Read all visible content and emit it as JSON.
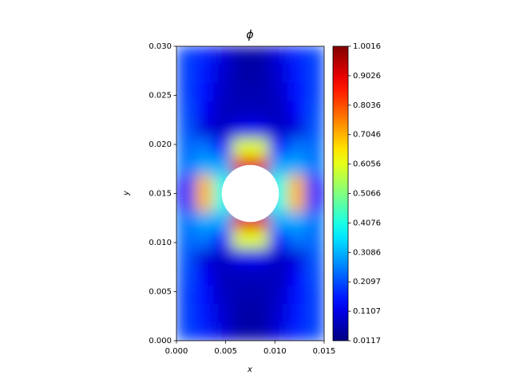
{
  "chart_data": {
    "type": "heatmap",
    "title": "ϕ",
    "xlabel": "x",
    "ylabel": "y",
    "xlim": [
      0,
      0.015
    ],
    "ylim": [
      0,
      0.03
    ],
    "xticks": [
      {
        "value": 0,
        "label": "0.000"
      },
      {
        "value": 0.005,
        "label": "0.005"
      },
      {
        "value": 0.01,
        "label": "0.010"
      },
      {
        "value": 0.015,
        "label": "0.015"
      }
    ],
    "yticks": [
      {
        "value": 0,
        "label": "0.000"
      },
      {
        "value": 0.005,
        "label": "0.005"
      },
      {
        "value": 0.01,
        "label": "0.010"
      },
      {
        "value": 0.015,
        "label": "0.015"
      },
      {
        "value": 0.02,
        "label": "0.020"
      },
      {
        "value": 0.025,
        "label": "0.025"
      },
      {
        "value": 0.03,
        "label": "0.030"
      }
    ],
    "colormap": "jet",
    "zlim": [
      0.0117,
      1.0016
    ],
    "cticks": [
      0.0117,
      0.1107,
      0.2097,
      0.3086,
      0.4076,
      0.5066,
      0.6056,
      0.7046,
      0.8036,
      0.9026,
      1.0016
    ],
    "hole": {
      "center": [
        0.0075,
        0.015
      ],
      "radius": 0.0029
    },
    "z": [
      [
        0.2,
        0.17,
        0.1,
        0.05,
        0.05,
        0.1,
        0.17,
        0.2
      ],
      [
        0.2,
        0.16,
        0.09,
        0.05,
        0.05,
        0.09,
        0.16,
        0.2
      ],
      [
        0.2,
        0.15,
        0.08,
        0.06,
        0.06,
        0.08,
        0.15,
        0.2
      ],
      [
        0.21,
        0.13,
        0.07,
        0.07,
        0.07,
        0.07,
        0.13,
        0.21
      ],
      [
        0.22,
        0.1,
        0.08,
        0.12,
        0.12,
        0.08,
        0.1,
        0.22
      ],
      [
        0.24,
        0.25,
        0.15,
        0.6,
        0.6,
        0.15,
        0.25,
        0.24
      ],
      [
        0.25,
        0.3,
        0.3,
        0.9,
        0.9,
        0.3,
        0.3,
        0.25
      ],
      [
        0.15,
        0.7,
        0.4,
        0.3,
        0.3,
        0.4,
        0.7,
        0.15
      ],
      [
        0.15,
        0.7,
        0.4,
        0.3,
        0.3,
        0.4,
        0.7,
        0.15
      ],
      [
        0.25,
        0.3,
        0.3,
        0.9,
        0.9,
        0.3,
        0.3,
        0.25
      ],
      [
        0.24,
        0.25,
        0.15,
        0.6,
        0.6,
        0.15,
        0.25,
        0.24
      ],
      [
        0.22,
        0.1,
        0.08,
        0.12,
        0.12,
        0.08,
        0.1,
        0.22
      ],
      [
        0.21,
        0.13,
        0.07,
        0.07,
        0.07,
        0.07,
        0.13,
        0.21
      ],
      [
        0.2,
        0.15,
        0.08,
        0.06,
        0.06,
        0.08,
        0.15,
        0.2
      ],
      [
        0.2,
        0.16,
        0.09,
        0.05,
        0.05,
        0.09,
        0.16,
        0.2
      ],
      [
        0.2,
        0.17,
        0.1,
        0.05,
        0.05,
        0.1,
        0.17,
        0.2
      ]
    ]
  }
}
